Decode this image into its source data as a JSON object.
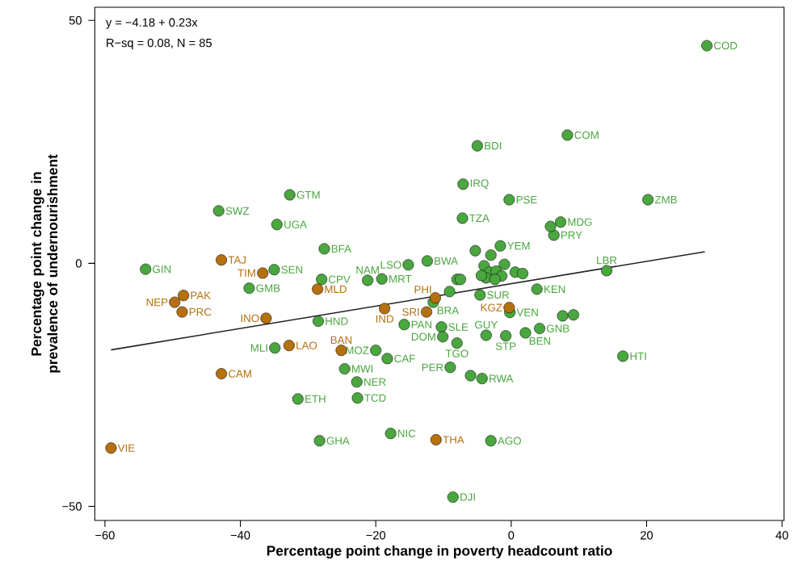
{
  "chart_data": {
    "type": "scatter",
    "xlabel": "Percentage point change in poverty headcount ratio",
    "ylabel": "Percentage point change in prevalence of undernourishment",
    "xlim": [
      -61.5,
      40.3
    ],
    "ylim": [
      -52.9,
      52.7
    ],
    "xticks": [
      {
        "value": -60,
        "label": "−60"
      },
      {
        "value": -40,
        "label": "−40"
      },
      {
        "value": -20,
        "label": "−20"
      },
      0,
      20,
      40
    ],
    "yticks": [
      {
        "value": -50,
        "label": "−50"
      },
      0,
      50
    ],
    "grid": false,
    "series": [
      {
        "marker": "circle",
        "color": "#4aa63f",
        "x": [
          28.9,
          8.3,
          -5.0,
          -7.1,
          -0.3,
          -7.2,
          20.2,
          -32.7,
          -43.2,
          -34.6,
          -27.6,
          -54.0,
          -35.0,
          -38.7,
          -28.0,
          -28.5,
          -34.9,
          7.3,
          6.3,
          14.1,
          3.8,
          16.5,
          -1.6,
          -15.2,
          -12.4,
          -21.2,
          -19.1,
          -15.8,
          -10.3,
          -10.1,
          -8.0,
          -3.7,
          -0.8,
          2.1,
          4.2,
          -0.2,
          -4.6,
          -11.5,
          -20.0,
          -18.3,
          -24.6,
          -22.8,
          -22.7,
          -31.5,
          -9.0,
          -4.3,
          -28.3,
          -17.8,
          -3.0,
          -8.6,
          5.8,
          -5.3,
          -3.0,
          -6.0,
          7.6,
          9.2,
          -8.0,
          -7.5,
          -9.1,
          -4.0,
          -3.2,
          -2.2,
          -1.0,
          -1.4,
          0.6,
          1.7,
          -3.7,
          -4.4,
          -2.4
        ],
        "values": [
          44.8,
          26.4,
          24.2,
          16.3,
          13.1,
          9.3,
          13.1,
          14.1,
          10.8,
          8.0,
          3.0,
          -1.2,
          -1.3,
          -5.1,
          -3.3,
          -11.9,
          -17.4,
          8.5,
          5.8,
          -1.5,
          -5.3,
          -19.1,
          3.6,
          -0.3,
          0.5,
          -3.5,
          -3.2,
          -12.6,
          -13.1,
          -15.1,
          -16.4,
          -14.8,
          -14.9,
          -14.3,
          -13.4,
          -10.1,
          -6.5,
          -8.0,
          -17.9,
          -19.6,
          -21.7,
          -24.4,
          -27.7,
          -27.9,
          -21.4,
          -23.7,
          -36.5,
          -35.0,
          -36.5,
          -48.1,
          7.6,
          2.6,
          1.7,
          -23.1,
          -10.8,
          -10.6,
          -3.3,
          -3.3,
          -5.8,
          -0.5,
          -1.8,
          -1.6,
          -0.2,
          -2.6,
          -1.8,
          -2.1,
          -3.0,
          -2.5,
          -3.3
        ]
      },
      {
        "marker": "circle",
        "color": "#b5700f",
        "x": [
          -42.8,
          -36.7,
          -48.4,
          -49.7,
          -48.6,
          -28.6,
          -36.2,
          -32.8,
          -25.1,
          -42.8,
          -59.1,
          -18.7,
          -12.5,
          -11.2,
          -0.3,
          -11.1
        ],
        "values": [
          0.7,
          -2.0,
          -6.6,
          -8.0,
          -10.0,
          -5.3,
          -11.3,
          -16.9,
          -17.9,
          -22.7,
          -38.0,
          -9.3,
          -10.0,
          -7.1,
          -9.1,
          -36.3
        ]
      },
      {
        "type": "line",
        "marker": "none",
        "color": "#222222",
        "x": [
          -59.1,
          28.6
        ],
        "values": [
          -17.8,
          2.4
        ]
      }
    ],
    "annotations": [
      "y = −4.18 + 0.23x",
      "R−sq = 0.08, N = 85",
      {
        "text": "COD",
        "x": 28.9,
        "y": 44.8
      },
      {
        "text": "COM",
        "x": 8.3,
        "y": 26.4
      },
      {
        "text": "BDI",
        "x": -5.0,
        "y": 24.2
      },
      {
        "text": "IRQ",
        "x": -7.1,
        "y": 16.3
      },
      {
        "text": "PSE",
        "x": -0.3,
        "y": 13.1
      },
      {
        "text": "TZA",
        "x": -7.2,
        "y": 9.3
      },
      {
        "text": "ZMB",
        "x": 20.2,
        "y": 13.1
      },
      {
        "text": "GTM",
        "x": -32.7,
        "y": 14.1
      },
      {
        "text": "SWZ",
        "x": -43.2,
        "y": 10.8
      },
      {
        "text": "UGA",
        "x": -34.6,
        "y": 8.0
      },
      {
        "text": "BFA",
        "x": -27.6,
        "y": 3.0
      },
      {
        "text": "GIN",
        "x": -54.0,
        "y": -1.2
      },
      {
        "text": "SEN",
        "x": -35.0,
        "y": -1.3
      },
      {
        "text": "GMB",
        "x": -38.7,
        "y": -5.1
      },
      {
        "text": "CPV",
        "x": -28.0,
        "y": -3.3
      },
      {
        "text": "HND",
        "x": -28.5,
        "y": -11.9
      },
      {
        "text": "MLI",
        "x": -34.9,
        "y": -17.4
      },
      {
        "text": "MDG",
        "x": 7.3,
        "y": 8.5
      },
      {
        "text": "PRY",
        "x": 6.3,
        "y": 5.8
      },
      {
        "text": "LBR",
        "x": 14.1,
        "y": -1.5
      },
      {
        "text": "KEN",
        "x": 3.8,
        "y": -5.3
      },
      {
        "text": "HTI",
        "x": 16.5,
        "y": -19.1
      },
      {
        "text": "YEM",
        "x": -1.6,
        "y": 3.6
      },
      {
        "text": "LSO",
        "x": -15.2,
        "y": -0.3
      },
      {
        "text": "BWA",
        "x": -12.4,
        "y": 0.5
      },
      {
        "text": "NAM",
        "x": -21.2,
        "y": -3.5
      },
      {
        "text": "MRT",
        "x": -19.1,
        "y": -3.2
      },
      {
        "text": "PAN",
        "x": -15.8,
        "y": -12.6
      },
      {
        "text": "SLE",
        "x": -10.3,
        "y": -13.1
      },
      {
        "text": "DOM",
        "x": -10.1,
        "y": -15.1
      },
      {
        "text": "TGO",
        "x": -8.0,
        "y": -16.4
      },
      {
        "text": "GUY",
        "x": -3.7,
        "y": -14.8
      },
      {
        "text": "STP",
        "x": -0.8,
        "y": -14.9
      },
      {
        "text": "BEN",
        "x": 2.1,
        "y": -14.3
      },
      {
        "text": "GNB",
        "x": 4.2,
        "y": -13.4
      },
      {
        "text": "VEN",
        "x": -0.2,
        "y": -10.1
      },
      {
        "text": "SUR",
        "x": -4.6,
        "y": -6.5
      },
      {
        "text": "BRA",
        "x": -11.5,
        "y": -8.0
      },
      {
        "text": "MOZ",
        "x": -20.0,
        "y": -17.9
      },
      {
        "text": "CAF",
        "x": -18.3,
        "y": -19.6
      },
      {
        "text": "MWI",
        "x": -24.6,
        "y": -21.7
      },
      {
        "text": "NER",
        "x": -22.8,
        "y": -24.4
      },
      {
        "text": "TCD",
        "x": -22.7,
        "y": -27.7
      },
      {
        "text": "ETH",
        "x": -31.5,
        "y": -27.9
      },
      {
        "text": "PER",
        "x": -9.0,
        "y": -21.4
      },
      {
        "text": "RWA",
        "x": -4.3,
        "y": -23.7
      },
      {
        "text": "GHA",
        "x": -28.3,
        "y": -36.5
      },
      {
        "text": "NIC",
        "x": -17.8,
        "y": -35.0
      },
      {
        "text": "AGO",
        "x": -3.0,
        "y": -36.5
      },
      {
        "text": "DJI",
        "x": -8.6,
        "y": -48.1
      },
      {
        "text": "TAJ",
        "x": -42.8,
        "y": 0.7
      },
      {
        "text": "TIM",
        "x": -36.7,
        "y": -2.0
      },
      {
        "text": "PAK",
        "x": -48.4,
        "y": -6.6
      },
      {
        "text": "NEP",
        "x": -49.7,
        "y": -8.0
      },
      {
        "text": "PRC",
        "x": -48.6,
        "y": -10.0
      },
      {
        "text": "MLD",
        "x": -28.6,
        "y": -5.3
      },
      {
        "text": "INO",
        "x": -36.2,
        "y": -11.3
      },
      {
        "text": "LAO",
        "x": -32.8,
        "y": -16.9
      },
      {
        "text": "BAN",
        "x": -25.1,
        "y": -17.9
      },
      {
        "text": "CAM",
        "x": -42.8,
        "y": -22.7
      },
      {
        "text": "VIE",
        "x": -59.1,
        "y": -38.0
      },
      {
        "text": "IND",
        "x": -18.7,
        "y": -9.3
      },
      {
        "text": "SRI",
        "x": -12.5,
        "y": -10.0
      },
      {
        "text": "PHI",
        "x": -11.2,
        "y": -7.1
      },
      {
        "text": "KGZ",
        "x": -0.3,
        "y": -9.1
      },
      {
        "text": "THA",
        "x": -11.1,
        "y": -36.3
      }
    ]
  }
}
